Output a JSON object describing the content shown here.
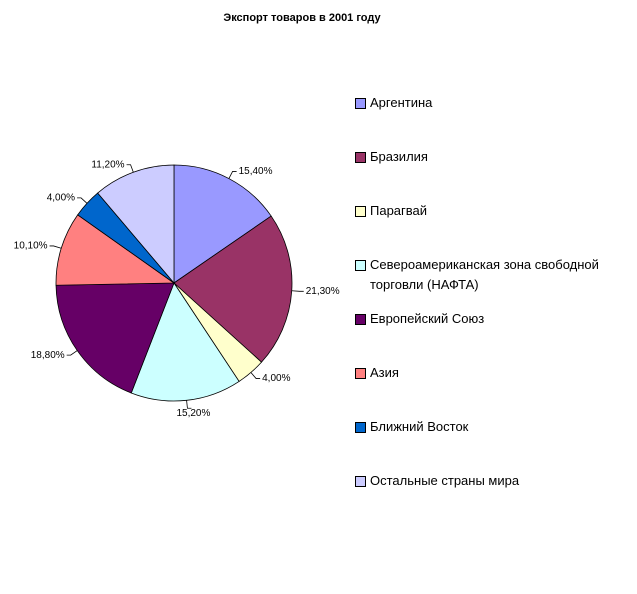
{
  "chart_data": {
    "type": "pie",
    "title": "Экспорт товаров в 2001 году",
    "categories": [
      "Аргентина",
      "Бразилия",
      "Парагвай",
      "Североамериканская зона свободной торговли (НАФТА)",
      "Европейский Союз",
      "Азия",
      "Ближний Восток",
      "Остальные страны мира"
    ],
    "values": [
      15.4,
      21.3,
      4.0,
      15.2,
      18.8,
      10.1,
      4.0,
      11.2
    ],
    "value_labels": [
      "15,40%",
      "21,30%",
      "4,00%",
      "15,20%",
      "18,80%",
      "10,10%",
      "4,00%",
      "11,20%"
    ],
    "colors": [
      "#9999ff",
      "#993366",
      "#ffffcc",
      "#ccffff",
      "#660066",
      "#ff8080",
      "#0066cc",
      "#ccccff"
    ],
    "legend": "right"
  }
}
